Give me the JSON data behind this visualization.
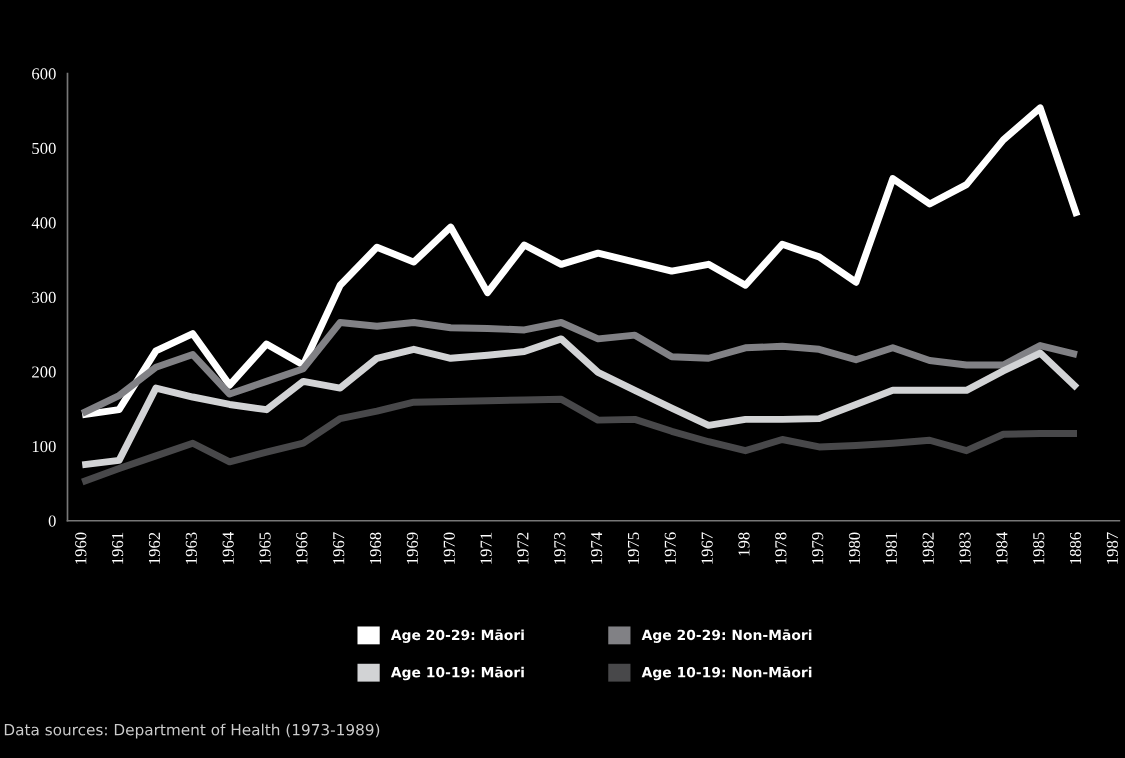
{
  "chart_data": {
    "type": "line",
    "categories": [
      "1960",
      "1961",
      "1962",
      "1963",
      "1964",
      "1965",
      "1966",
      "1967",
      "1968",
      "1969",
      "1970",
      "1971",
      "1972",
      "1973",
      "1974",
      "1975",
      "1976",
      "1967",
      "198",
      "1978",
      "1979",
      "1980",
      "1981",
      "1982",
      "1983",
      "1984",
      "1985",
      "1886",
      "1987"
    ],
    "series": [
      {
        "name": "Age 20-29: Māori",
        "color": "#ffffff",
        "values": [
          142,
          149,
          228,
          251,
          182,
          237,
          209,
          316,
          367,
          347,
          394,
          306,
          370,
          344,
          359,
          347,
          335,
          344,
          316,
          371,
          354,
          320,
          459,
          425,
          451,
          511,
          554,
          409,
          null
        ]
      },
      {
        "name": "Age 20-29: Non-Māori",
        "color": "#818185",
        "values": [
          144,
          168,
          206,
          223,
          170,
          187,
          204,
          266,
          261,
          266,
          259,
          258,
          256,
          266,
          244,
          249,
          220,
          218,
          232,
          234,
          230,
          216,
          232,
          215,
          209,
          209,
          235,
          223,
          null
        ]
      },
      {
        "name": "Age 10-19: Māori",
        "color": "#d2d3d5",
        "values": [
          75,
          81,
          178,
          166,
          156,
          149,
          187,
          178,
          218,
          230,
          218,
          222,
          227,
          244,
          199,
          175,
          151,
          128,
          136,
          136,
          137,
          156,
          175,
          175,
          175,
          201,
          225,
          178,
          null
        ]
      },
      {
        "name": "Age 10-19: Non-Māori",
        "color": "#48484a",
        "values": [
          52,
          70,
          87,
          104,
          79,
          92,
          104,
          137,
          147,
          159,
          160,
          161,
          162,
          163,
          135,
          136,
          120,
          106,
          94,
          109,
          99,
          101,
          104,
          108,
          94,
          116,
          117,
          117,
          null
        ]
      }
    ],
    "ylim": [
      0,
      600
    ],
    "yticks": [
      0,
      100,
      200,
      300,
      400,
      500,
      600
    ],
    "grid": false,
    "legend": "bottom",
    "marker": "none",
    "line_style": "solid",
    "annotations": [
      "Data sources: Department of Health (1973-1989)"
    ]
  }
}
